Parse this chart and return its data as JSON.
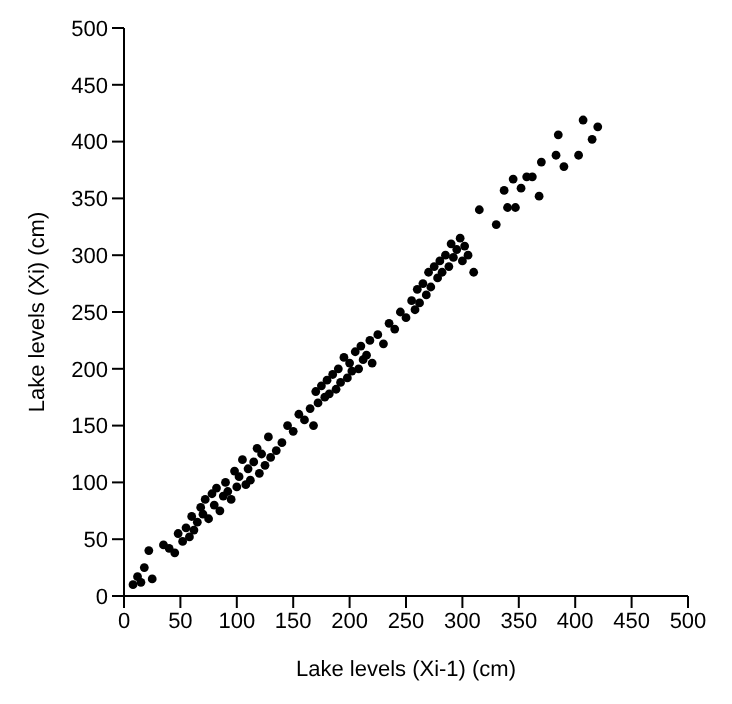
{
  "chart_data": {
    "type": "scatter",
    "xlabel": "Lake levels (Xi-1)  (cm)",
    "ylabel": "Lake levels (Xi) (cm)",
    "marker": "circle",
    "color": "#000000",
    "x": [
      8,
      12,
      15,
      22,
      18,
      25,
      35,
      40,
      45,
      48,
      52,
      55,
      58,
      60,
      62,
      65,
      68,
      70,
      72,
      75,
      78,
      80,
      82,
      85,
      88,
      90,
      92,
      95,
      98,
      100,
      102,
      105,
      108,
      110,
      112,
      115,
      118,
      120,
      122,
      125,
      128,
      130,
      135,
      140,
      145,
      150,
      155,
      160,
      165,
      168,
      170,
      172,
      175,
      178,
      180,
      182,
      185,
      188,
      190,
      192,
      195,
      198,
      200,
      202,
      205,
      208,
      210,
      212,
      215,
      218,
      220,
      225,
      230,
      235,
      240,
      245,
      250,
      255,
      258,
      260,
      262,
      265,
      268,
      270,
      272,
      275,
      278,
      280,
      282,
      285,
      288,
      290,
      292,
      295,
      298,
      300,
      302,
      305,
      310,
      315,
      330,
      337,
      340,
      345,
      347,
      352,
      357,
      362,
      368,
      370,
      383,
      385,
      390,
      403,
      407,
      415,
      420
    ],
    "values": [
      10,
      17,
      12,
      40,
      25,
      15,
      45,
      42,
      38,
      55,
      48,
      60,
      52,
      70,
      58,
      65,
      78,
      72,
      85,
      68,
      90,
      80,
      95,
      75,
      88,
      100,
      92,
      85,
      110,
      96,
      105,
      120,
      98,
      112,
      102,
      118,
      130,
      108,
      125,
      115,
      140,
      122,
      128,
      135,
      150,
      145,
      160,
      155,
      165,
      150,
      180,
      170,
      185,
      175,
      190,
      178,
      195,
      182,
      200,
      188,
      210,
      192,
      205,
      198,
      215,
      200,
      220,
      208,
      212,
      225,
      205,
      230,
      222,
      240,
      235,
      250,
      245,
      260,
      252,
      270,
      258,
      275,
      265,
      285,
      272,
      290,
      280,
      295,
      285,
      300,
      290,
      310,
      298,
      305,
      315,
      295,
      308,
      300,
      285,
      340,
      327,
      357,
      342,
      367,
      342,
      359,
      369,
      369,
      352,
      382,
      388,
      406,
      378,
      388,
      419,
      402,
      413
    ],
    "xlim": [
      0,
      500
    ],
    "ylim": [
      0,
      500
    ],
    "xticks": [
      0,
      50,
      100,
      150,
      200,
      250,
      300,
      350,
      400,
      450,
      500
    ],
    "yticks": [
      0,
      50,
      100,
      150,
      200,
      250,
      300,
      350,
      400,
      450,
      500
    ],
    "grid": false
  }
}
